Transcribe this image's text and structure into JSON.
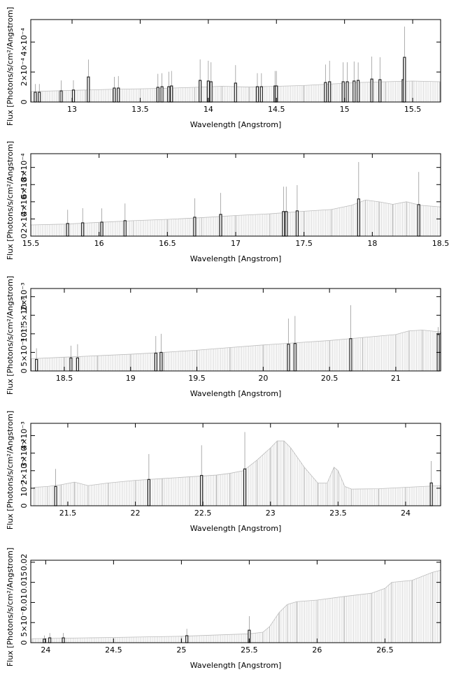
{
  "chart_data": [
    {
      "type": "spectrum",
      "xlabel": "Wavelength [Angstrom]",
      "ylabel": "Flux [Photons/s/cm²/Angstrom]",
      "xlim": [
        12.697,
        15.705
      ],
      "ylim": [
        0,
        0.00055
      ],
      "xticks": [
        13,
        13.5,
        14,
        14.5,
        15,
        15.5
      ],
      "yticks": [
        0,
        {
          "value": 0.0002,
          "label": "2×10⁻⁴"
        },
        {
          "value": 0.0004,
          "label": "4×10⁻⁴"
        }
      ],
      "continuum": {
        "color": "#bdbdbd",
        "x": [
          12.7,
          12.9,
          13.1,
          13.3,
          13.5,
          13.7,
          13.9,
          14.1,
          14.3,
          14.5,
          14.7,
          14.9,
          15.1,
          15.3,
          15.5,
          15.7
        ],
        "values": [
          7e-05,
          7.5e-05,
          8e-05,
          8.5e-05,
          8.8e-05,
          9.2e-05,
          9.8e-05,
          0.000105,
          0.0001,
          0.000105,
          0.00011,
          0.00012,
          0.00013,
          0.000135,
          0.00014,
          0.000135
        ]
      },
      "lines": {
        "color": "#222222",
        "x": [
          12.73,
          12.76,
          12.92,
          13.01,
          13.12,
          13.31,
          13.34,
          13.63,
          13.66,
          13.71,
          13.73,
          13.94,
          14.0,
          14.02,
          14.2,
          14.36,
          14.39,
          14.49,
          14.5,
          14.86,
          14.89,
          14.99,
          15.02,
          15.07,
          15.1,
          15.2,
          15.26,
          15.43,
          15.44
        ],
        "values": [
          6.5e-05,
          6.5e-05,
          7.4e-05,
          8e-05,
          0.000167,
          9.3e-05,
          9.3e-05,
          9.8e-05,
          0.000102,
          0.000102,
          0.000107,
          0.000144,
          0.00014,
          0.000135,
          0.000126,
          0.000102,
          0.000102,
          0.000107,
          0.000107,
          0.00013,
          0.000135,
          0.000135,
          0.000135,
          0.00014,
          0.000144,
          0.000153,
          0.000149,
          0.000149,
          0.000298
        ],
        "errors": [
          5.5e-05,
          5.5e-05,
          7e-05,
          6.5e-05,
          0.000116,
          7.5e-05,
          8e-05,
          9e-05,
          9e-05,
          0.0001,
          0.0001,
          0.00014,
          0.000135,
          0.00013,
          0.00012,
          9e-05,
          9e-05,
          0.0001,
          0.0001,
          0.00012,
          0.00014,
          0.00013,
          0.00013,
          0.00013,
          0.00012,
          0.00015,
          0.00015,
          0.00014,
          0.000205
        ]
      }
    },
    {
      "type": "spectrum",
      "xlabel": "Wavelength [Angstrom]",
      "ylabel": "Flux [Photons/s/cm²/Angstrom]",
      "xlim": [
        15.5,
        18.5
      ],
      "ylim": [
        0,
        0.00096
      ],
      "xticks": [
        15.5,
        16,
        16.5,
        17,
        17.5,
        18,
        18.5
      ],
      "yticks": [
        0,
        {
          "value": 0.0002,
          "label": "2×10⁻⁴"
        },
        {
          "value": 0.0004,
          "label": "4×10⁻⁴"
        },
        {
          "value": 0.0006,
          "label": "6×10⁻⁴"
        },
        {
          "value": 0.0008,
          "label": "8×10⁻⁴"
        }
      ],
      "continuum": {
        "color": "#bdbdbd",
        "x": [
          15.5,
          15.75,
          16,
          16.25,
          16.5,
          16.75,
          17,
          17.25,
          17.5,
          17.7,
          17.85,
          17.95,
          18.05,
          18.15,
          18.25,
          18.35,
          18.5
        ],
        "values": [
          0.00013,
          0.00014,
          0.00016,
          0.00018,
          0.000195,
          0.000215,
          0.00024,
          0.00026,
          0.00029,
          0.00031,
          0.00036,
          0.00042,
          0.0004,
          0.00037,
          0.0004,
          0.00036,
          0.00034
        ]
      },
      "lines": {
        "color": "#222222",
        "x": [
          15.77,
          15.88,
          16.02,
          16.19,
          16.7,
          16.89,
          17.35,
          17.37,
          17.45,
          17.9,
          18.34
        ],
        "values": [
          0.000147,
          0.000155,
          0.000163,
          0.00018,
          0.00022,
          0.000253,
          0.000286,
          0.000286,
          0.000294,
          0.000433,
          0.000367
        ],
        "errors": [
          0.00016,
          0.00017,
          0.00016,
          0.0002,
          0.00022,
          0.00025,
          0.00029,
          0.00029,
          0.0003,
          0.00043,
          0.00038
        ]
      }
    },
    {
      "type": "spectrum",
      "xlabel": "Wavelength [Angstrom]",
      "ylabel": "Flux [Photons/s/cm²/Angstrom]",
      "xlim": [
        18.247,
        21.338
      ],
      "ylim": [
        0,
        0.00222
      ],
      "xticks": [
        18.5,
        19,
        19.5,
        20,
        20.5,
        21
      ],
      "yticks": [
        0,
        {
          "value": 0.0005,
          "label": "5×10⁻⁴"
        },
        {
          "value": 0.001,
          "label": "10⁻³"
        },
        {
          "value": 0.0015,
          "label": "1.5×10⁻³"
        },
        {
          "value": 0.002,
          "label": "2×10⁻³"
        }
      ],
      "continuum": {
        "color": "#bdbdbd",
        "x": [
          18.25,
          18.5,
          18.75,
          19,
          19.25,
          19.5,
          19.75,
          20,
          20.25,
          20.5,
          20.75,
          21,
          21.1,
          21.2,
          21.34
        ],
        "values": [
          0.00033,
          0.00037,
          0.00041,
          0.00045,
          0.0005,
          0.00056,
          0.00063,
          0.0007,
          0.00076,
          0.00082,
          0.0009,
          0.00098,
          0.00108,
          0.0011,
          0.00105
        ]
      },
      "lines": {
        "color": "#222222",
        "x": [
          18.29,
          18.55,
          18.6,
          19.19,
          19.23,
          20.19,
          20.24,
          20.66,
          21.32
        ],
        "values": [
          0.00031,
          0.00035,
          0.00035,
          0.00048,
          0.0005,
          0.00072,
          0.00074,
          0.00087,
          0.00098
        ],
        "errors": [
          0.0003,
          0.00033,
          0.00037,
          0.00046,
          0.0005,
          0.00069,
          0.00074,
          0.0009,
          0.0002
        ]
      }
    },
    {
      "type": "spectrum",
      "xlabel": "Wavelength [Angstrom]",
      "ylabel": "Flux [Photons/s/cm²/Angstrom]",
      "xlim": [
        21.226,
        24.259
      ],
      "ylim": [
        0,
        0.0047
      ],
      "xticks": [
        21.5,
        22,
        22.5,
        23,
        23.5,
        24
      ],
      "yticks": [
        0,
        {
          "value": 0.001,
          "label": "10⁻³"
        },
        {
          "value": 0.002,
          "label": "2×10⁻³"
        },
        {
          "value": 0.003,
          "label": "3×10⁻³"
        },
        {
          "value": 0.004,
          "label": "4×10⁻³"
        }
      ],
      "continuum": {
        "color": "#bdbdbd",
        "x": [
          21.25,
          21.35,
          21.45,
          21.55,
          21.65,
          21.8,
          22.0,
          22.2,
          22.4,
          22.6,
          22.7,
          22.8,
          22.9,
          23.0,
          23.05,
          23.1,
          23.15,
          23.25,
          23.35,
          23.42,
          23.47,
          23.5,
          23.55,
          23.6,
          23.8,
          24.0,
          24.26
        ],
        "values": [
          0.00105,
          0.0011,
          0.0012,
          0.00135,
          0.00115,
          0.0013,
          0.00145,
          0.00155,
          0.00165,
          0.00175,
          0.00185,
          0.002,
          0.0026,
          0.0033,
          0.0037,
          0.0037,
          0.0033,
          0.0022,
          0.0013,
          0.0013,
          0.0022,
          0.002,
          0.0011,
          0.00095,
          0.00097,
          0.00105,
          0.00115
        ]
      },
      "lines": {
        "color": "#222222",
        "x": [
          21.41,
          22.1,
          22.49,
          22.81,
          24.19
        ],
        "values": [
          0.0011,
          0.0015,
          0.00173,
          0.0021,
          0.0013
        ],
        "errors": [
          0.001,
          0.00145,
          0.00172,
          0.0021,
          0.00125
        ]
      }
    },
    {
      "type": "spectrum",
      "xlabel": "Wavelength [Angstrom]",
      "ylabel": "Flux [Photons/s/cm²/Angstrom]",
      "xlim": [
        23.89,
        26.91
      ],
      "ylim": [
        0,
        0.0205
      ],
      "xticks": [
        24,
        24.5,
        25,
        25.5,
        26,
        26.5
      ],
      "yticks": [
        0,
        {
          "value": 0.005,
          "label": "5×10⁻³"
        },
        0.01,
        0.015,
        0.02
      ],
      "continuum": {
        "color": "#bdbdbd",
        "x": [
          23.9,
          24.5,
          25.0,
          25.5,
          25.6,
          25.65,
          25.72,
          25.78,
          25.85,
          26.0,
          26.2,
          26.4,
          26.5,
          26.55,
          26.7,
          26.85,
          26.91
        ],
        "values": [
          0.001,
          0.0013,
          0.0016,
          0.0022,
          0.0026,
          0.004,
          0.0075,
          0.0095,
          0.0102,
          0.0106,
          0.0115,
          0.0123,
          0.0135,
          0.015,
          0.0155,
          0.0175,
          0.018
        ]
      },
      "lines": {
        "color": "#222222",
        "x": [
          23.99,
          24.03,
          24.13,
          25.04,
          25.5
        ],
        "values": [
          0.00087,
          0.0012,
          0.0012,
          0.00174,
          0.0031
        ],
        "errors": [
          0.0009,
          0.0012,
          0.0012,
          0.0017,
          0.0035
        ]
      }
    }
  ]
}
